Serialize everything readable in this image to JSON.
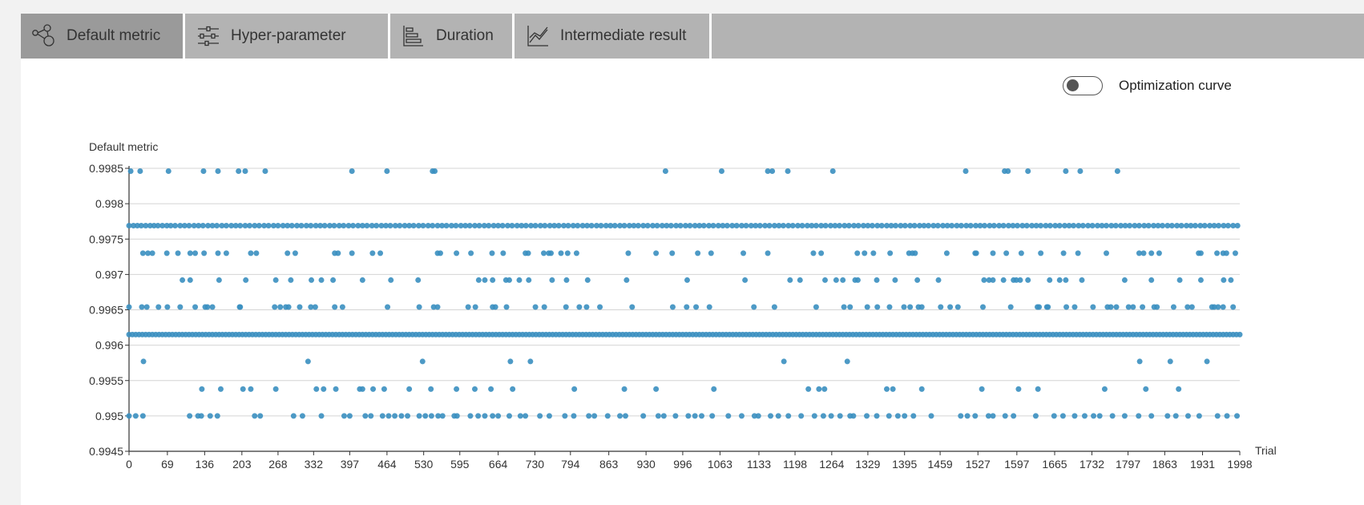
{
  "tabs": [
    {
      "label": "Default metric",
      "icon": "share-nodes-icon",
      "active": true
    },
    {
      "label": "Hyper-parameter",
      "icon": "sliders-icon",
      "active": false
    },
    {
      "label": "Duration",
      "icon": "bar-chart-icon",
      "active": false
    },
    {
      "label": "Intermediate result",
      "icon": "line-chart-icon",
      "active": false
    }
  ],
  "toggle": {
    "label": "Optimization curve",
    "on": false
  },
  "chart_data": {
    "type": "scatter",
    "ylabel": "Default metric",
    "xlabel": "Trial",
    "ylim": [
      0.9945,
      0.9985
    ],
    "xlim": [
      0,
      1998
    ],
    "y_ticks": [
      "0.9945",
      "0.995",
      "0.9955",
      "0.996",
      "0.9965",
      "0.997",
      "0.9975",
      "0.998",
      "0.9985"
    ],
    "x_ticks": [
      "0",
      "69",
      "136",
      "203",
      "268",
      "332",
      "397",
      "464",
      "530",
      "595",
      "664",
      "730",
      "794",
      "863",
      "930",
      "996",
      "1063",
      "1133",
      "1198",
      "1264",
      "1329",
      "1395",
      "1459",
      "1527",
      "1597",
      "1665",
      "1732",
      "1797",
      "1863",
      "1931",
      "1998"
    ],
    "grid": true,
    "point_color": "#3a8fc0",
    "levels": [
      {
        "y": 0.99846,
        "x": [
          3,
          20,
          71,
          134,
          160,
          197,
          209,
          245,
          401,
          464,
          546,
          550,
          965,
          1066,
          1149,
          1157,
          1185,
          1266,
          1505,
          1575,
          1581,
          1617,
          1685,
          1711,
          1778
        ]
      },
      {
        "y": 0.99769,
        "x": [
          0,
          8,
          15,
          22,
          30,
          38,
          45,
          52,
          60,
          68,
          75,
          83,
          92,
          100,
          108,
          117,
          125,
          133,
          142,
          150,
          158,
          167,
          175,
          184,
          192,
          200,
          209,
          217,
          226,
          234,
          243,
          251,
          260,
          268,
          277,
          285,
          293,
          302,
          310,
          319,
          327,
          336,
          344,
          352,
          361,
          369,
          378,
          386,
          395,
          403,
          412,
          420,
          428,
          437,
          445,
          454,
          462,
          470,
          479,
          487,
          496,
          504,
          512,
          521,
          529,
          538,
          546,
          555,
          563,
          571,
          580,
          588,
          597,
          605,
          613,
          622,
          630,
          639,
          647,
          656,
          664,
          672,
          681,
          689,
          698,
          706,
          714,
          723,
          731,
          740,
          748,
          757,
          765,
          773,
          782,
          790,
          799,
          807,
          816,
          824,
          832,
          841,
          849,
          858,
          866,
          874,
          883,
          891,
          900,
          908,
          916,
          925,
          933,
          942,
          950,
          959,
          967,
          975,
          984,
          992,
          1001,
          1009,
          1018,
          1026,
          1034,
          1043,
          1051,
          1060,
          1068,
          1076,
          1085,
          1093,
          1102,
          1110,
          1119,
          1127,
          1135,
          1144,
          1152,
          1161,
          1169,
          1177,
          1186,
          1194,
          1203,
          1211,
          1220,
          1228,
          1236,
          1245,
          1253,
          1262,
          1270,
          1278,
          1287,
          1295,
          1304,
          1312,
          1321,
          1329,
          1337,
          1346,
          1354,
          1363,
          1371,
          1379,
          1388,
          1396,
          1405,
          1413,
          1422,
          1430,
          1438,
          1447,
          1455,
          1464,
          1472,
          1480,
          1489,
          1497,
          1506,
          1514,
          1523,
          1531,
          1539,
          1548,
          1556,
          1565,
          1573,
          1582,
          1590,
          1598,
          1607,
          1615,
          1624,
          1632,
          1640,
          1649,
          1657,
          1666,
          1674,
          1683,
          1691,
          1699,
          1708,
          1716,
          1725,
          1733,
          1742,
          1750,
          1758,
          1767,
          1775,
          1784,
          1792,
          1800,
          1809,
          1817,
          1826,
          1834,
          1843,
          1851,
          1859,
          1868,
          1876,
          1885,
          1893,
          1902,
          1910,
          1918,
          1927,
          1935,
          1944,
          1952,
          1960,
          1969,
          1977,
          1986,
          1994
        ]
      },
      {
        "y": 0.9973,
        "x": [
          25,
          34,
          42,
          68,
          88,
          110,
          119,
          135,
          160,
          175,
          219,
          229,
          285,
          299,
          370,
          376,
          401,
          438,
          452,
          555,
          560,
          589,
          615,
          653,
          673,
          713,
          718,
          746,
          755,
          759,
          777,
          789,
          805,
          898,
          948,
          977,
          1023,
          1047,
          1105,
          1149,
          1231,
          1245,
          1310,
          1323,
          1339,
          1369,
          1403,
          1409,
          1414,
          1471,
          1522,
          1524,
          1554,
          1578,
          1605,
          1640,
          1681,
          1707,
          1758,
          1817,
          1825,
          1839,
          1853,
          1924,
          1928,
          1957,
          1968,
          1974,
          1990
        ]
      },
      {
        "y": 0.99692,
        "x": [
          96,
          110,
          162,
          210,
          264,
          291,
          328,
          346,
          367,
          420,
          471,
          520,
          629,
          640,
          654,
          678,
          684,
          702,
          719,
          761,
          787,
          825,
          895,
          1004,
          1108,
          1189,
          1207,
          1252,
          1272,
          1284,
          1306,
          1311,
          1345,
          1378,
          1418,
          1456,
          1538,
          1547,
          1554,
          1573,
          1591,
          1596,
          1603,
          1617,
          1656,
          1674,
          1685,
          1714,
          1791,
          1839,
          1890,
          1928,
          1969,
          1982
        ]
      },
      {
        "y": 0.99654,
        "x": [
          0,
          23,
          32,
          53,
          69,
          92,
          119,
          137,
          141,
          150,
          199,
          200,
          262,
          272,
          282,
          287,
          307,
          327,
          335,
          370,
          384,
          465,
          522,
          548,
          555,
          610,
          623,
          654,
          659,
          679,
          731,
          747,
          786,
          810,
          823,
          847,
          905,
          978,
          1003,
          1020,
          1044,
          1124,
          1161,
          1236,
          1286,
          1297,
          1328,
          1346,
          1368,
          1394,
          1405,
          1420,
          1426,
          1460,
          1477,
          1491,
          1536,
          1586,
          1634,
          1637,
          1651,
          1653,
          1686,
          1701,
          1734,
          1760,
          1766,
          1776,
          1798,
          1806,
          1823,
          1844,
          1849,
          1879,
          1904,
          1912,
          1948,
          1952,
          1959,
          1968,
          1986
        ]
      },
      {
        "y": 0.99615,
        "x": [
          0,
          6,
          12,
          18,
          24,
          30,
          36,
          42,
          48,
          54,
          60,
          66,
          72,
          78,
          84,
          90,
          96,
          102,
          108,
          114,
          120,
          126,
          132,
          138,
          144,
          150,
          156,
          162,
          168,
          174,
          180,
          186,
          192,
          198,
          204,
          210,
          216,
          222,
          228,
          234,
          240,
          246,
          252,
          258,
          264,
          270,
          276,
          282,
          288,
          294,
          300,
          306,
          312,
          318,
          324,
          330,
          336,
          342,
          348,
          354,
          360,
          366,
          372,
          378,
          384,
          390,
          396,
          402,
          408,
          414,
          420,
          426,
          432,
          438,
          444,
          450,
          456,
          462,
          468,
          474,
          480,
          486,
          492,
          498,
          504,
          510,
          516,
          522,
          528,
          534,
          540,
          546,
          552,
          558,
          564,
          570,
          576,
          582,
          588,
          594,
          600,
          606,
          612,
          618,
          624,
          630,
          636,
          642,
          648,
          654,
          660,
          666,
          672,
          678,
          684,
          690,
          696,
          702,
          708,
          714,
          720,
          726,
          732,
          738,
          744,
          750,
          756,
          762,
          768,
          774,
          780,
          786,
          792,
          798,
          804,
          810,
          816,
          822,
          828,
          834,
          840,
          846,
          852,
          858,
          864,
          870,
          876,
          882,
          888,
          894,
          900,
          906,
          912,
          918,
          924,
          930,
          936,
          942,
          948,
          954,
          960,
          966,
          972,
          978,
          984,
          990,
          996,
          1002,
          1008,
          1014,
          1020,
          1026,
          1032,
          1038,
          1044,
          1050,
          1056,
          1062,
          1068,
          1074,
          1080,
          1086,
          1092,
          1098,
          1104,
          1110,
          1116,
          1122,
          1128,
          1134,
          1140,
          1146,
          1152,
          1158,
          1164,
          1170,
          1176,
          1182,
          1188,
          1194,
          1200,
          1206,
          1212,
          1218,
          1224,
          1230,
          1236,
          1242,
          1248,
          1254,
          1260,
          1266,
          1272,
          1278,
          1284,
          1290,
          1296,
          1302,
          1308,
          1314,
          1320,
          1326,
          1332,
          1338,
          1344,
          1350,
          1356,
          1362,
          1368,
          1374,
          1380,
          1386,
          1392,
          1398,
          1404,
          1410,
          1416,
          1422,
          1428,
          1434,
          1440,
          1446,
          1452,
          1458,
          1464,
          1470,
          1476,
          1482,
          1488,
          1494,
          1500,
          1506,
          1512,
          1518,
          1524,
          1530,
          1536,
          1542,
          1548,
          1554,
          1560,
          1566,
          1572,
          1578,
          1584,
          1590,
          1596,
          1602,
          1608,
          1614,
          1620,
          1626,
          1632,
          1638,
          1644,
          1650,
          1656,
          1662,
          1668,
          1674,
          1680,
          1686,
          1692,
          1698,
          1704,
          1710,
          1716,
          1722,
          1728,
          1734,
          1740,
          1746,
          1752,
          1758,
          1764,
          1770,
          1776,
          1782,
          1788,
          1794,
          1800,
          1806,
          1812,
          1818,
          1824,
          1830,
          1836,
          1842,
          1848,
          1854,
          1860,
          1866,
          1872,
          1878,
          1884,
          1890,
          1896,
          1902,
          1908,
          1914,
          1920,
          1926,
          1932,
          1938,
          1944,
          1950,
          1956,
          1962,
          1968,
          1974,
          1980,
          1986,
          1992,
          1998
        ]
      },
      {
        "y": 0.99577,
        "x": [
          26,
          322,
          528,
          686,
          722,
          1178,
          1292,
          1818,
          1873,
          1939
        ]
      },
      {
        "y": 0.99538,
        "x": [
          131,
          165,
          205,
          219,
          264,
          337,
          350,
          372,
          415,
          420,
          439,
          459,
          504,
          543,
          589,
          622,
          651,
          690,
          801,
          891,
          948,
          1052,
          1222,
          1241,
          1251,
          1363,
          1374,
          1426,
          1534,
          1600,
          1635,
          1755,
          1829,
          1888
        ]
      },
      {
        "y": 0.995,
        "x": [
          0,
          12,
          25,
          109,
          124,
          130,
          146,
          159,
          226,
          236,
          296,
          312,
          346,
          387,
          397,
          425,
          435,
          456,
          467,
          478,
          490,
          501,
          522,
          533,
          544,
          556,
          564,
          585,
          590,
          614,
          628,
          640,
          654,
          664,
          684,
          704,
          713,
          739,
          756,
          784,
          800,
          827,
          837,
          861,
          883,
          893,
          925,
          952,
          962,
          983,
          1006,
          1018,
          1030,
          1049,
          1078,
          1102,
          1125,
          1132,
          1154,
          1168,
          1186,
          1209,
          1233,
          1249,
          1263,
          1279,
          1297,
          1303,
          1327,
          1345,
          1367,
          1383,
          1395,
          1411,
          1443,
          1496,
          1508,
          1522,
          1546,
          1554,
          1576,
          1591,
          1631,
          1664,
          1680,
          1701,
          1719,
          1735,
          1746,
          1769,
          1791,
          1816,
          1839,
          1868,
          1883,
          1905,
          1925,
          1958,
          1975,
          1993
        ]
      }
    ]
  }
}
